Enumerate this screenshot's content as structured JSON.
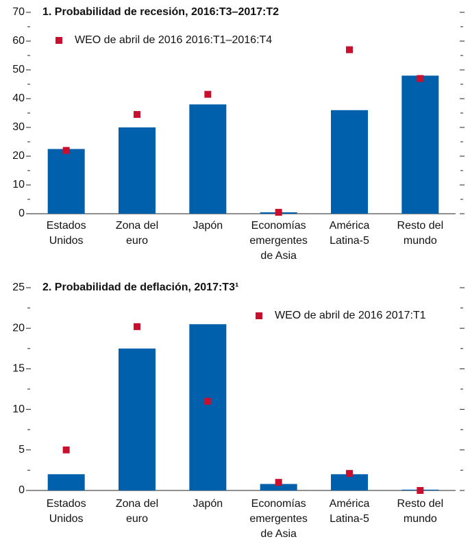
{
  "chart_data": [
    {
      "type": "bar",
      "title": "1. Probabilidad de recesión, 2016:T3–2017:T2",
      "categories": [
        [
          "Estados",
          "Unidos"
        ],
        [
          "Zona del",
          "euro"
        ],
        [
          "Japón"
        ],
        [
          "Economías",
          "emergentes",
          "de Asia"
        ],
        [
          "América",
          "Latina-5"
        ],
        [
          "Resto del",
          "mundo"
        ]
      ],
      "series": [
        {
          "color": "#0060ac",
          "values": [
            22.5,
            30,
            38,
            0.5,
            36,
            48
          ]
        },
        {
          "name": "WEO de abril de 2016  2016:T1–2016:T4",
          "color": "#c8102e",
          "marker": "square",
          "values": [
            22,
            34.5,
            41.5,
            0.5,
            57,
            47
          ]
        }
      ],
      "ylim": [
        0,
        70
      ],
      "yticks": [
        0,
        10,
        20,
        30,
        40,
        50,
        60,
        70
      ],
      "legend": "upper left"
    },
    {
      "type": "bar",
      "title": "2. Probabilidad de deflación, 2017:T3¹",
      "categories": [
        [
          "Estados",
          "Unidos"
        ],
        [
          "Zona del",
          "euro"
        ],
        [
          "Japón"
        ],
        [
          "Economías",
          "emergentes",
          "de Asia"
        ],
        [
          "América",
          "Latina-5"
        ],
        [
          "Resto del",
          "mundo"
        ]
      ],
      "series": [
        {
          "color": "#0060ac",
          "values": [
            2,
            17.5,
            20.5,
            0.8,
            2,
            0.1
          ]
        },
        {
          "name": "WEO de abril de 2016 2017:T1",
          "color": "#c8102e",
          "marker": "square",
          "values": [
            5,
            20.2,
            11,
            1,
            2.1,
            0
          ]
        }
      ],
      "ylim": [
        0,
        25
      ],
      "yticks": [
        0,
        5,
        10,
        15,
        20,
        25
      ],
      "legend": "upper right"
    }
  ]
}
